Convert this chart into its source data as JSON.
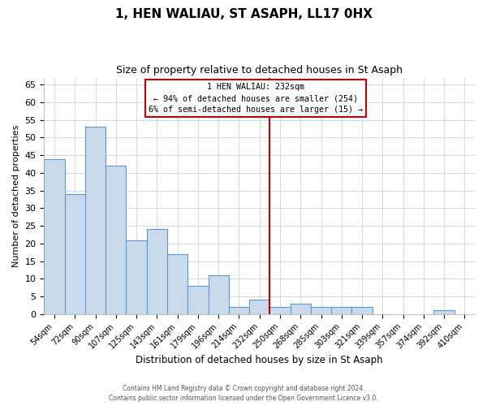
{
  "title": "1, HEN WALIAU, ST ASAPH, LL17 0HX",
  "subtitle": "Size of property relative to detached houses in St Asaph",
  "xlabel": "Distribution of detached houses by size in St Asaph",
  "ylabel": "Number of detached properties",
  "bar_labels": [
    "54sqm",
    "72sqm",
    "90sqm",
    "107sqm",
    "125sqm",
    "143sqm",
    "161sqm",
    "179sqm",
    "196sqm",
    "214sqm",
    "232sqm",
    "250sqm",
    "268sqm",
    "285sqm",
    "303sqm",
    "321sqm",
    "339sqm",
    "357sqm",
    "374sqm",
    "392sqm",
    "410sqm"
  ],
  "bar_values": [
    44,
    34,
    53,
    42,
    21,
    24,
    17,
    8,
    11,
    2,
    4,
    2,
    3,
    2,
    2,
    2,
    0,
    0,
    0,
    1,
    0
  ],
  "bar_color": "#c9daea",
  "bar_edge_color": "#5b9bd5",
  "vline_color": "#cc0000",
  "annotation_title": "1 HEN WALIAU: 232sqm",
  "annotation_line1": "← 94% of detached houses are smaller (254)",
  "annotation_line2": "6% of semi-detached houses are larger (15) →",
  "annotation_box_color": "#ffffff",
  "annotation_box_edge": "#cc0000",
  "ylim": [
    0,
    67
  ],
  "yticks": [
    0,
    5,
    10,
    15,
    20,
    25,
    30,
    35,
    40,
    45,
    50,
    55,
    60,
    65
  ],
  "footer1": "Contains HM Land Registry data © Crown copyright and database right 2024.",
  "footer2": "Contains public sector information licensed under the Open Government Licence v3.0.",
  "bg_color": "#ffffff",
  "grid_color": "#c8d4e0"
}
